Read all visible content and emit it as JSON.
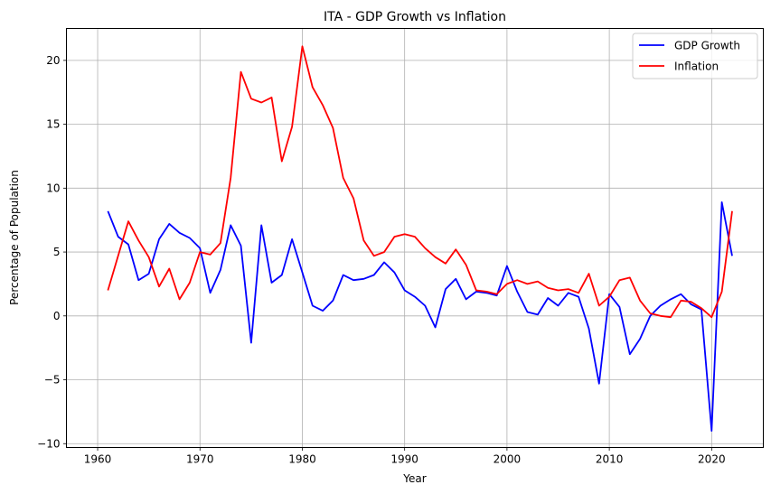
{
  "chart_data": {
    "type": "line",
    "title": "ITA - GDP Growth vs Inflation",
    "xlabel": "Year",
    "ylabel": "Percentage of Population",
    "xlim": [
      1956.95,
      2025.05
    ],
    "ylim": [
      -10.3,
      22.5
    ],
    "xticks": [
      1960,
      1970,
      1980,
      1990,
      2000,
      2010,
      2020
    ],
    "yticks": [
      -10,
      -5,
      0,
      5,
      10,
      15,
      20
    ],
    "xtick_labels": [
      "1960",
      "1970",
      "1980",
      "1990",
      "2000",
      "2010",
      "2020"
    ],
    "ytick_labels": [
      "−10",
      "−5",
      "0",
      "5",
      "10",
      "15",
      "20"
    ],
    "grid": true,
    "legend_position": "top-right",
    "x": [
      1961,
      1962,
      1963,
      1964,
      1965,
      1966,
      1967,
      1968,
      1969,
      1970,
      1971,
      1972,
      1973,
      1974,
      1975,
      1976,
      1977,
      1978,
      1979,
      1980,
      1981,
      1982,
      1983,
      1984,
      1985,
      1986,
      1987,
      1988,
      1989,
      1990,
      1991,
      1992,
      1993,
      1994,
      1995,
      1996,
      1997,
      1998,
      1999,
      2000,
      2001,
      2002,
      2003,
      2004,
      2005,
      2006,
      2007,
      2008,
      2009,
      2010,
      2011,
      2012,
      2013,
      2014,
      2015,
      2016,
      2017,
      2018,
      2019,
      2020,
      2021,
      2022
    ],
    "series": [
      {
        "name": "GDP Growth",
        "color": "#0000ff",
        "values": [
          8.2,
          6.2,
          5.6,
          2.8,
          3.3,
          6.0,
          7.2,
          6.5,
          6.1,
          5.3,
          1.8,
          3.6,
          7.1,
          5.5,
          -2.1,
          7.1,
          2.6,
          3.2,
          6.0,
          3.4,
          0.8,
          0.4,
          1.2,
          3.2,
          2.8,
          2.9,
          3.2,
          4.2,
          3.4,
          2.0,
          1.5,
          0.8,
          -0.9,
          2.1,
          2.9,
          1.3,
          1.9,
          1.8,
          1.6,
          3.9,
          1.9,
          0.3,
          0.1,
          1.4,
          0.8,
          1.8,
          1.5,
          -1.0,
          -5.3,
          1.7,
          0.7,
          -3.0,
          -1.8,
          0.0,
          0.8,
          1.3,
          1.7,
          0.9,
          0.5,
          -9.0,
          8.9,
          4.7
        ]
      },
      {
        "name": "Inflation",
        "color": "#ff0000",
        "values": [
          2.0,
          4.7,
          7.4,
          5.9,
          4.6,
          2.3,
          3.7,
          1.3,
          2.6,
          5.0,
          4.8,
          5.7,
          10.8,
          19.1,
          17.0,
          16.7,
          17.1,
          12.1,
          14.8,
          21.1,
          17.9,
          16.5,
          14.7,
          10.8,
          9.2,
          5.9,
          4.7,
          5.0,
          6.2,
          6.4,
          6.2,
          5.3,
          4.6,
          4.1,
          5.2,
          4.0,
          2.0,
          1.9,
          1.7,
          2.5,
          2.8,
          2.5,
          2.7,
          2.2,
          2.0,
          2.1,
          1.8,
          3.3,
          0.8,
          1.5,
          2.8,
          3.0,
          1.2,
          0.2,
          0.0,
          -0.1,
          1.2,
          1.1,
          0.6,
          -0.1,
          1.9,
          8.2
        ]
      }
    ]
  }
}
